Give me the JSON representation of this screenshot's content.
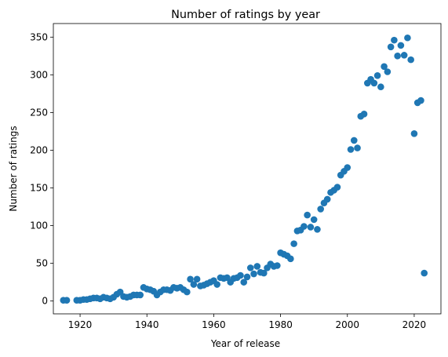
{
  "chart_data": {
    "type": "scatter",
    "title": "Number of ratings by year",
    "xlabel": "Year of release",
    "ylabel": "Number of ratings",
    "xlim": [
      1912,
      2028
    ],
    "ylim": [
      -17,
      368
    ],
    "xticks": [
      1920,
      1940,
      1960,
      1980,
      2000,
      2020
    ],
    "yticks": [
      0,
      50,
      100,
      150,
      200,
      250,
      300,
      350
    ],
    "grid": false,
    "marker_color": "#1f77b4",
    "points": [
      [
        1915,
        1
      ],
      [
        1916,
        1
      ],
      [
        1919,
        1
      ],
      [
        1920,
        1
      ],
      [
        1921,
        2
      ],
      [
        1922,
        2
      ],
      [
        1923,
        3
      ],
      [
        1924,
        4
      ],
      [
        1925,
        4
      ],
      [
        1926,
        3
      ],
      [
        1927,
        5
      ],
      [
        1928,
        4
      ],
      [
        1929,
        3
      ],
      [
        1930,
        5
      ],
      [
        1931,
        9
      ],
      [
        1932,
        12
      ],
      [
        1933,
        6
      ],
      [
        1934,
        5
      ],
      [
        1935,
        6
      ],
      [
        1936,
        8
      ],
      [
        1937,
        8
      ],
      [
        1938,
        8
      ],
      [
        1939,
        18
      ],
      [
        1940,
        16
      ],
      [
        1941,
        15
      ],
      [
        1942,
        13
      ],
      [
        1943,
        8
      ],
      [
        1944,
        12
      ],
      [
        1945,
        15
      ],
      [
        1946,
        15
      ],
      [
        1947,
        14
      ],
      [
        1948,
        18
      ],
      [
        1949,
        17
      ],
      [
        1950,
        18
      ],
      [
        1951,
        15
      ],
      [
        1952,
        12
      ],
      [
        1953,
        29
      ],
      [
        1954,
        22
      ],
      [
        1955,
        29
      ],
      [
        1956,
        20
      ],
      [
        1957,
        21
      ],
      [
        1958,
        23
      ],
      [
        1959,
        25
      ],
      [
        1960,
        27
      ],
      [
        1961,
        22
      ],
      [
        1962,
        31
      ],
      [
        1963,
        30
      ],
      [
        1964,
        31
      ],
      [
        1965,
        25
      ],
      [
        1966,
        30
      ],
      [
        1967,
        31
      ],
      [
        1968,
        34
      ],
      [
        1969,
        25
      ],
      [
        1970,
        32
      ],
      [
        1971,
        44
      ],
      [
        1972,
        36
      ],
      [
        1973,
        46
      ],
      [
        1974,
        38
      ],
      [
        1975,
        37
      ],
      [
        1976,
        44
      ],
      [
        1977,
        49
      ],
      [
        1978,
        46
      ],
      [
        1979,
        47
      ],
      [
        1980,
        64
      ],
      [
        1981,
        62
      ],
      [
        1982,
        60
      ],
      [
        1983,
        56
      ],
      [
        1984,
        76
      ],
      [
        1985,
        93
      ],
      [
        1986,
        94
      ],
      [
        1987,
        99
      ],
      [
        1988,
        114
      ],
      [
        1989,
        98
      ],
      [
        1990,
        108
      ],
      [
        1991,
        95
      ],
      [
        1992,
        122
      ],
      [
        1993,
        130
      ],
      [
        1994,
        135
      ],
      [
        1995,
        144
      ],
      [
        1996,
        147
      ],
      [
        1997,
        151
      ],
      [
        1998,
        167
      ],
      [
        1999,
        172
      ],
      [
        2000,
        177
      ],
      [
        2001,
        201
      ],
      [
        2002,
        213
      ],
      [
        2003,
        203
      ],
      [
        2004,
        245
      ],
      [
        2005,
        248
      ],
      [
        2006,
        289
      ],
      [
        2007,
        294
      ],
      [
        2008,
        289
      ],
      [
        2009,
        299
      ],
      [
        2010,
        284
      ],
      [
        2011,
        311
      ],
      [
        2012,
        304
      ],
      [
        2013,
        337
      ],
      [
        2014,
        346
      ],
      [
        2015,
        325
      ],
      [
        2016,
        339
      ],
      [
        2017,
        326
      ],
      [
        2018,
        349
      ],
      [
        2019,
        320
      ],
      [
        2020,
        222
      ],
      [
        2021,
        263
      ],
      [
        2022,
        266
      ],
      [
        2023,
        37
      ]
    ]
  }
}
